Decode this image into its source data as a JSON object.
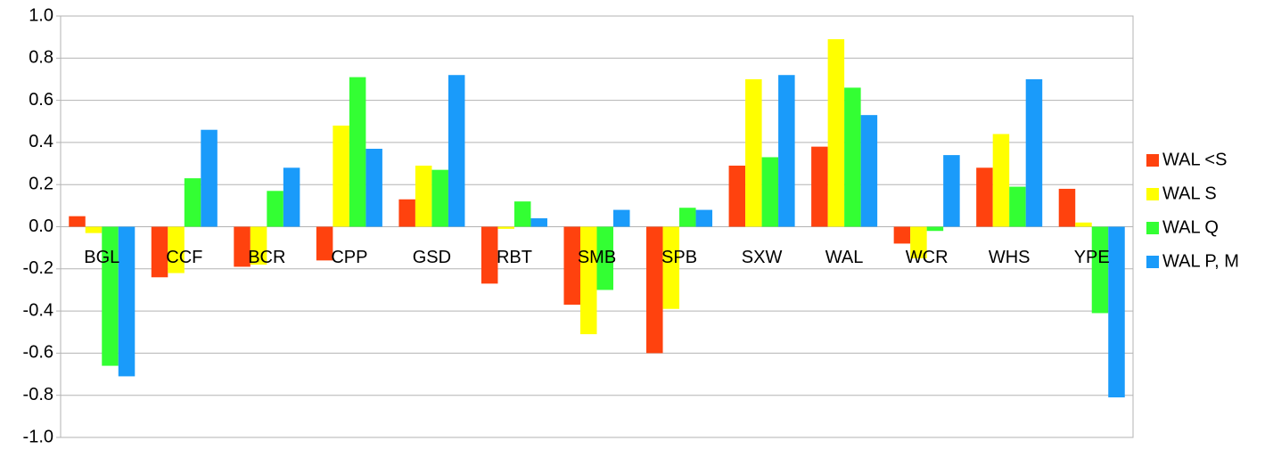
{
  "chart_data": {
    "type": "bar",
    "categories": [
      "BGL",
      "CCF",
      "BCR",
      "CPP",
      "GSD",
      "RBT",
      "SMB",
      "SPB",
      "SXW",
      "WAL",
      "WCR",
      "WHS",
      "YPE"
    ],
    "series": [
      {
        "name": "WAL <S",
        "color": "#ff420e",
        "values": [
          0.05,
          -0.24,
          -0.19,
          -0.16,
          0.13,
          -0.27,
          -0.37,
          -0.6,
          0.29,
          0.38,
          -0.08,
          0.28,
          0.18
        ]
      },
      {
        "name": "WAL S",
        "color": "#ffff00",
        "values": [
          -0.03,
          -0.22,
          -0.18,
          0.48,
          0.29,
          -0.01,
          -0.51,
          -0.39,
          0.7,
          0.89,
          -0.15,
          0.44,
          0.02
        ]
      },
      {
        "name": "WAL Q",
        "color": "#33ff33",
        "values": [
          -0.66,
          0.23,
          0.17,
          0.71,
          0.27,
          0.12,
          -0.3,
          0.09,
          0.33,
          0.66,
          -0.02,
          0.19,
          -0.41
        ]
      },
      {
        "name": "WAL P, M",
        "color": "#1a9bfa",
        "values": [
          -0.71,
          0.46,
          0.28,
          0.37,
          0.72,
          0.04,
          0.08,
          0.08,
          0.72,
          0.53,
          0.34,
          0.7,
          -0.81
        ]
      }
    ],
    "ylim": [
      -1.0,
      1.0
    ],
    "yticks": [
      {
        "value": -1.0,
        "label": "-1.0"
      },
      -0.8,
      -0.6,
      -0.4,
      -0.2,
      {
        "value": 0,
        "label": "0.0"
      },
      0.2,
      0.4,
      0.6,
      0.8,
      {
        "value": 1.0,
        "label": "1.0"
      }
    ],
    "grid": true,
    "legend": "right"
  }
}
